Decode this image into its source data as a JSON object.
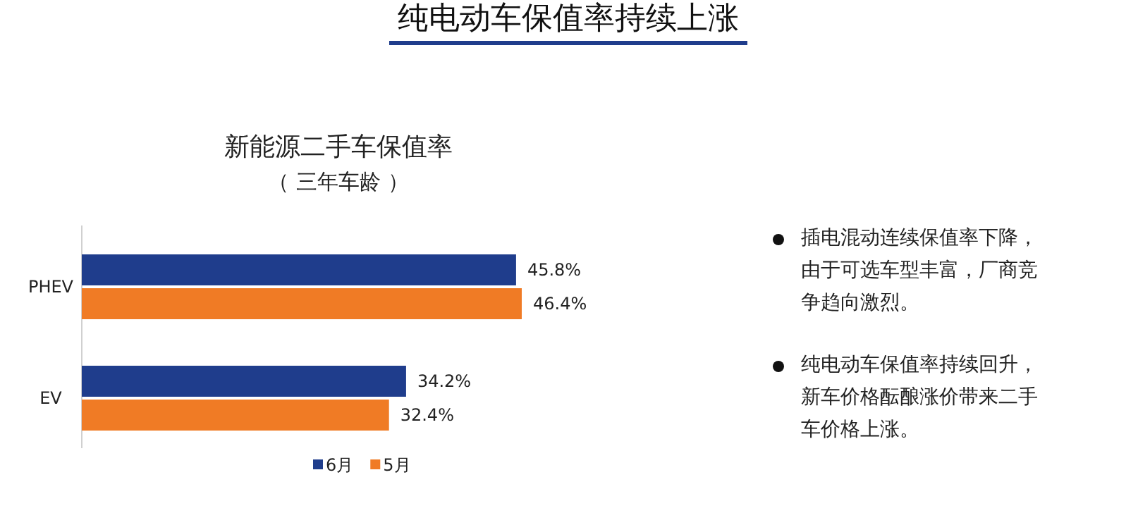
{
  "chart_data": {
    "type": "bar",
    "orientation": "horizontal",
    "title": "纯电动车保值率持续上涨",
    "subtitle": "新能源二手车保值率",
    "categories": [
      "PHEV",
      "EV"
    ],
    "series": [
      {
        "name": "6月",
        "color": "#1f3d8c",
        "values": [
          45.8,
          34.2
        ],
        "value_labels": [
          "45.8%",
          "34.2%"
        ]
      },
      {
        "name": "5月",
        "color": "#f07b25",
        "values": [
          46.4,
          32.4
        ],
        "value_labels": [
          "46.4%",
          "32.4%"
        ]
      }
    ],
    "legend": "bottom",
    "grid": false,
    "annotations": [
      "（ 三年车龄 ）",
      "插电混动连续保值率下降，由于可选车型丰富，厂商竞争趋向激烈。",
      "纯电动车保值率持续回升，新车价格酝酿涨价带来二手车价格上涨。"
    ]
  }
}
